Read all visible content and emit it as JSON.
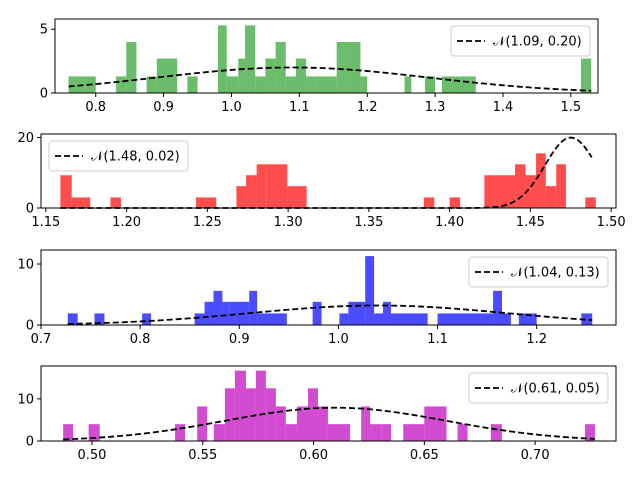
{
  "chart_data": [
    {
      "type": "bar",
      "subtype": "histogram with normal fit",
      "bar_color": "#2ca02c",
      "xlim": [
        0.74,
        1.54
      ],
      "ylim": [
        0,
        5.8
      ],
      "xticks": [
        "0.8",
        "0.9",
        "1.0",
        "1.1",
        "1.2",
        "1.3",
        "1.4",
        "1.5"
      ],
      "yticks": [
        "0",
        "5"
      ],
      "fit": {
        "mu": 1.09,
        "sigma": 0.2,
        "peak": 2.0
      },
      "legend": "𝒩(1.09, 0.20)",
      "legend_position": "upper right",
      "bins": [
        {
          "x0": 0.76,
          "x1": 0.783,
          "h": 1.3
        },
        {
          "x0": 0.783,
          "x1": 0.8,
          "h": 1.3
        },
        {
          "x0": 0.83,
          "x1": 0.845,
          "h": 1.3
        },
        {
          "x0": 0.845,
          "x1": 0.86,
          "h": 4.0
        },
        {
          "x0": 0.875,
          "x1": 0.89,
          "h": 1.3
        },
        {
          "x0": 0.89,
          "x1": 0.905,
          "h": 2.7
        },
        {
          "x0": 0.905,
          "x1": 0.92,
          "h": 2.7
        },
        {
          "x0": 0.935,
          "x1": 0.95,
          "h": 1.3
        },
        {
          "x0": 0.98,
          "x1": 0.993,
          "h": 5.3
        },
        {
          "x0": 0.993,
          "x1": 1.01,
          "h": 1.3
        },
        {
          "x0": 1.01,
          "x1": 1.02,
          "h": 2.7
        },
        {
          "x0": 1.02,
          "x1": 1.035,
          "h": 5.3
        },
        {
          "x0": 1.035,
          "x1": 1.05,
          "h": 1.3
        },
        {
          "x0": 1.05,
          "x1": 1.065,
          "h": 2.7
        },
        {
          "x0": 1.065,
          "x1": 1.08,
          "h": 4.0
        },
        {
          "x0": 1.08,
          "x1": 1.095,
          "h": 1.3
        },
        {
          "x0": 1.095,
          "x1": 1.11,
          "h": 2.7
        },
        {
          "x0": 1.11,
          "x1": 1.125,
          "h": 1.3
        },
        {
          "x0": 1.125,
          "x1": 1.14,
          "h": 1.3
        },
        {
          "x0": 1.14,
          "x1": 1.155,
          "h": 1.3
        },
        {
          "x0": 1.155,
          "x1": 1.17,
          "h": 4.0
        },
        {
          "x0": 1.17,
          "x1": 1.19,
          "h": 4.0
        },
        {
          "x0": 1.19,
          "x1": 1.2,
          "h": 1.3
        },
        {
          "x0": 1.255,
          "x1": 1.265,
          "h": 1.3
        },
        {
          "x0": 1.285,
          "x1": 1.3,
          "h": 1.3
        },
        {
          "x0": 1.31,
          "x1": 1.325,
          "h": 1.3
        },
        {
          "x0": 1.325,
          "x1": 1.36,
          "h": 1.3
        },
        {
          "x0": 1.515,
          "x1": 1.53,
          "h": 2.7
        }
      ]
    },
    {
      "type": "bar",
      "subtype": "histogram with normal fit",
      "bar_color": "#ff0000",
      "xlim": [
        1.147,
        1.503
      ],
      "ylim": [
        0,
        21
      ],
      "xticks": [
        "1.15",
        "1.20",
        "1.25",
        "1.30",
        "1.35",
        "1.40",
        "1.45",
        "1.50"
      ],
      "yticks": [
        "0",
        "20"
      ],
      "fit": {
        "mu": 1.475,
        "sigma": 0.016,
        "peak": 20.0,
        "x_end": 1.488
      },
      "legend": "𝒩(1.48, 0.02)",
      "legend_position": "upper left",
      "bins": [
        {
          "x0": 1.159,
          "x1": 1.166,
          "h": 9.3
        },
        {
          "x0": 1.166,
          "x1": 1.1775,
          "h": 3.0
        },
        {
          "x0": 1.19,
          "x1": 1.1965,
          "h": 3.0
        },
        {
          "x0": 1.243,
          "x1": 1.2555,
          "h": 3.0
        },
        {
          "x0": 1.268,
          "x1": 1.274,
          "h": 6.2
        },
        {
          "x0": 1.274,
          "x1": 1.2805,
          "h": 9.3
        },
        {
          "x0": 1.2805,
          "x1": 1.2865,
          "h": 12.4
        },
        {
          "x0": 1.2865,
          "x1": 1.2995,
          "h": 12.4
        },
        {
          "x0": 1.2995,
          "x1": 1.3115,
          "h": 6.2
        },
        {
          "x0": 1.384,
          "x1": 1.3905,
          "h": 3.0
        },
        {
          "x0": 1.4,
          "x1": 1.4065,
          "h": 3.0
        },
        {
          "x0": 1.4215,
          "x1": 1.428,
          "h": 9.3
        },
        {
          "x0": 1.428,
          "x1": 1.4405,
          "h": 9.3
        },
        {
          "x0": 1.4405,
          "x1": 1.447,
          "h": 12.4
        },
        {
          "x0": 1.447,
          "x1": 1.4535,
          "h": 9.3
        },
        {
          "x0": 1.4535,
          "x1": 1.4595,
          "h": 15.5
        },
        {
          "x0": 1.4595,
          "x1": 1.466,
          "h": 6.2
        },
        {
          "x0": 1.466,
          "x1": 1.472,
          "h": 12.4
        },
        {
          "x0": 1.484,
          "x1": 1.4905,
          "h": 3.0
        }
      ]
    },
    {
      "type": "bar",
      "subtype": "histogram with normal fit",
      "bar_color": "#0000ff",
      "xlim": [
        0.7,
        1.28
      ],
      "ylim": [
        0,
        12.3
      ],
      "xticks": [
        "0.7",
        "0.8",
        "0.9",
        "1.0",
        "1.1",
        "1.2"
      ],
      "yticks": [
        "0",
        "10"
      ],
      "fit": {
        "mu": 1.04,
        "sigma": 0.13,
        "peak": 3.2
      },
      "legend": "𝒩(1.04, 0.13)",
      "legend_position": "upper right",
      "bins": [
        {
          "x0": 0.727,
          "x1": 0.737,
          "h": 1.9
        },
        {
          "x0": 0.754,
          "x1": 0.764,
          "h": 1.9
        },
        {
          "x0": 0.802,
          "x1": 0.811,
          "h": 1.9
        },
        {
          "x0": 0.855,
          "x1": 0.865,
          "h": 1.9
        },
        {
          "x0": 0.865,
          "x1": 0.874,
          "h": 3.8
        },
        {
          "x0": 0.874,
          "x1": 0.883,
          "h": 5.6
        },
        {
          "x0": 0.883,
          "x1": 0.89,
          "h": 3.8
        },
        {
          "x0": 0.89,
          "x1": 0.91,
          "h": 3.8
        },
        {
          "x0": 0.91,
          "x1": 0.918,
          "h": 5.6
        },
        {
          "x0": 0.918,
          "x1": 0.948,
          "h": 1.9
        },
        {
          "x0": 0.974,
          "x1": 0.983,
          "h": 3.8
        },
        {
          "x0": 1.001,
          "x1": 1.01,
          "h": 1.9
        },
        {
          "x0": 1.01,
          "x1": 1.027,
          "h": 3.8
        },
        {
          "x0": 1.027,
          "x1": 1.036,
          "h": 11.3
        },
        {
          "x0": 1.036,
          "x1": 1.045,
          "h": 1.9
        },
        {
          "x0": 1.045,
          "x1": 1.053,
          "h": 3.8
        },
        {
          "x0": 1.053,
          "x1": 1.09,
          "h": 1.9
        },
        {
          "x0": 1.1,
          "x1": 1.156,
          "h": 1.9
        },
        {
          "x0": 1.156,
          "x1": 1.165,
          "h": 5.6
        },
        {
          "x0": 1.165,
          "x1": 1.174,
          "h": 1.9
        },
        {
          "x0": 1.182,
          "x1": 1.2,
          "h": 1.9
        },
        {
          "x0": 1.245,
          "x1": 1.256,
          "h": 1.9
        }
      ]
    },
    {
      "type": "bar",
      "subtype": "histogram with normal fit",
      "bar_color": "#bf00bf",
      "xlim": [
        0.477,
        0.7365
      ],
      "ylim": [
        0,
        17.8
      ],
      "xticks": [
        "0.50",
        "0.55",
        "0.60",
        "0.65",
        "0.70"
      ],
      "yticks": [
        "0",
        "10"
      ],
      "fit": {
        "mu": 0.61,
        "sigma": 0.05,
        "peak": 7.9
      },
      "legend": "𝒩(0.61, 0.05)",
      "legend_position": "upper right",
      "bins": [
        {
          "x0": 0.487,
          "x1": 0.4915,
          "h": 4.0
        },
        {
          "x0": 0.4985,
          "x1": 0.5035,
          "h": 4.0
        },
        {
          "x0": 0.5375,
          "x1": 0.542,
          "h": 4.0
        },
        {
          "x0": 0.5475,
          "x1": 0.552,
          "h": 8.2
        },
        {
          "x0": 0.555,
          "x1": 0.56,
          "h": 4.0
        },
        {
          "x0": 0.56,
          "x1": 0.5645,
          "h": 12.5
        },
        {
          "x0": 0.5645,
          "x1": 0.5695,
          "h": 16.7
        },
        {
          "x0": 0.5695,
          "x1": 0.574,
          "h": 12.5
        },
        {
          "x0": 0.574,
          "x1": 0.5785,
          "h": 16.7
        },
        {
          "x0": 0.5785,
          "x1": 0.583,
          "h": 12.5
        },
        {
          "x0": 0.583,
          "x1": 0.5875,
          "h": 8.2
        },
        {
          "x0": 0.5875,
          "x1": 0.5925,
          "h": 4.0
        },
        {
          "x0": 0.5925,
          "x1": 0.5975,
          "h": 8.2
        },
        {
          "x0": 0.5975,
          "x1": 0.602,
          "h": 12.5
        },
        {
          "x0": 0.602,
          "x1": 0.6065,
          "h": 8.2
        },
        {
          "x0": 0.6065,
          "x1": 0.6115,
          "h": 4.0
        },
        {
          "x0": 0.6115,
          "x1": 0.6165,
          "h": 4.0
        },
        {
          "x0": 0.6215,
          "x1": 0.6255,
          "h": 8.2
        },
        {
          "x0": 0.6255,
          "x1": 0.6305,
          "h": 4.0
        },
        {
          "x0": 0.6305,
          "x1": 0.635,
          "h": 4.0
        },
        {
          "x0": 0.6405,
          "x1": 0.65,
          "h": 4.0
        },
        {
          "x0": 0.65,
          "x1": 0.66,
          "h": 8.2
        },
        {
          "x0": 0.665,
          "x1": 0.6695,
          "h": 4.0
        },
        {
          "x0": 0.68,
          "x1": 0.685,
          "h": 4.0
        },
        {
          "x0": 0.7225,
          "x1": 0.727,
          "h": 4.0
        }
      ]
    }
  ]
}
